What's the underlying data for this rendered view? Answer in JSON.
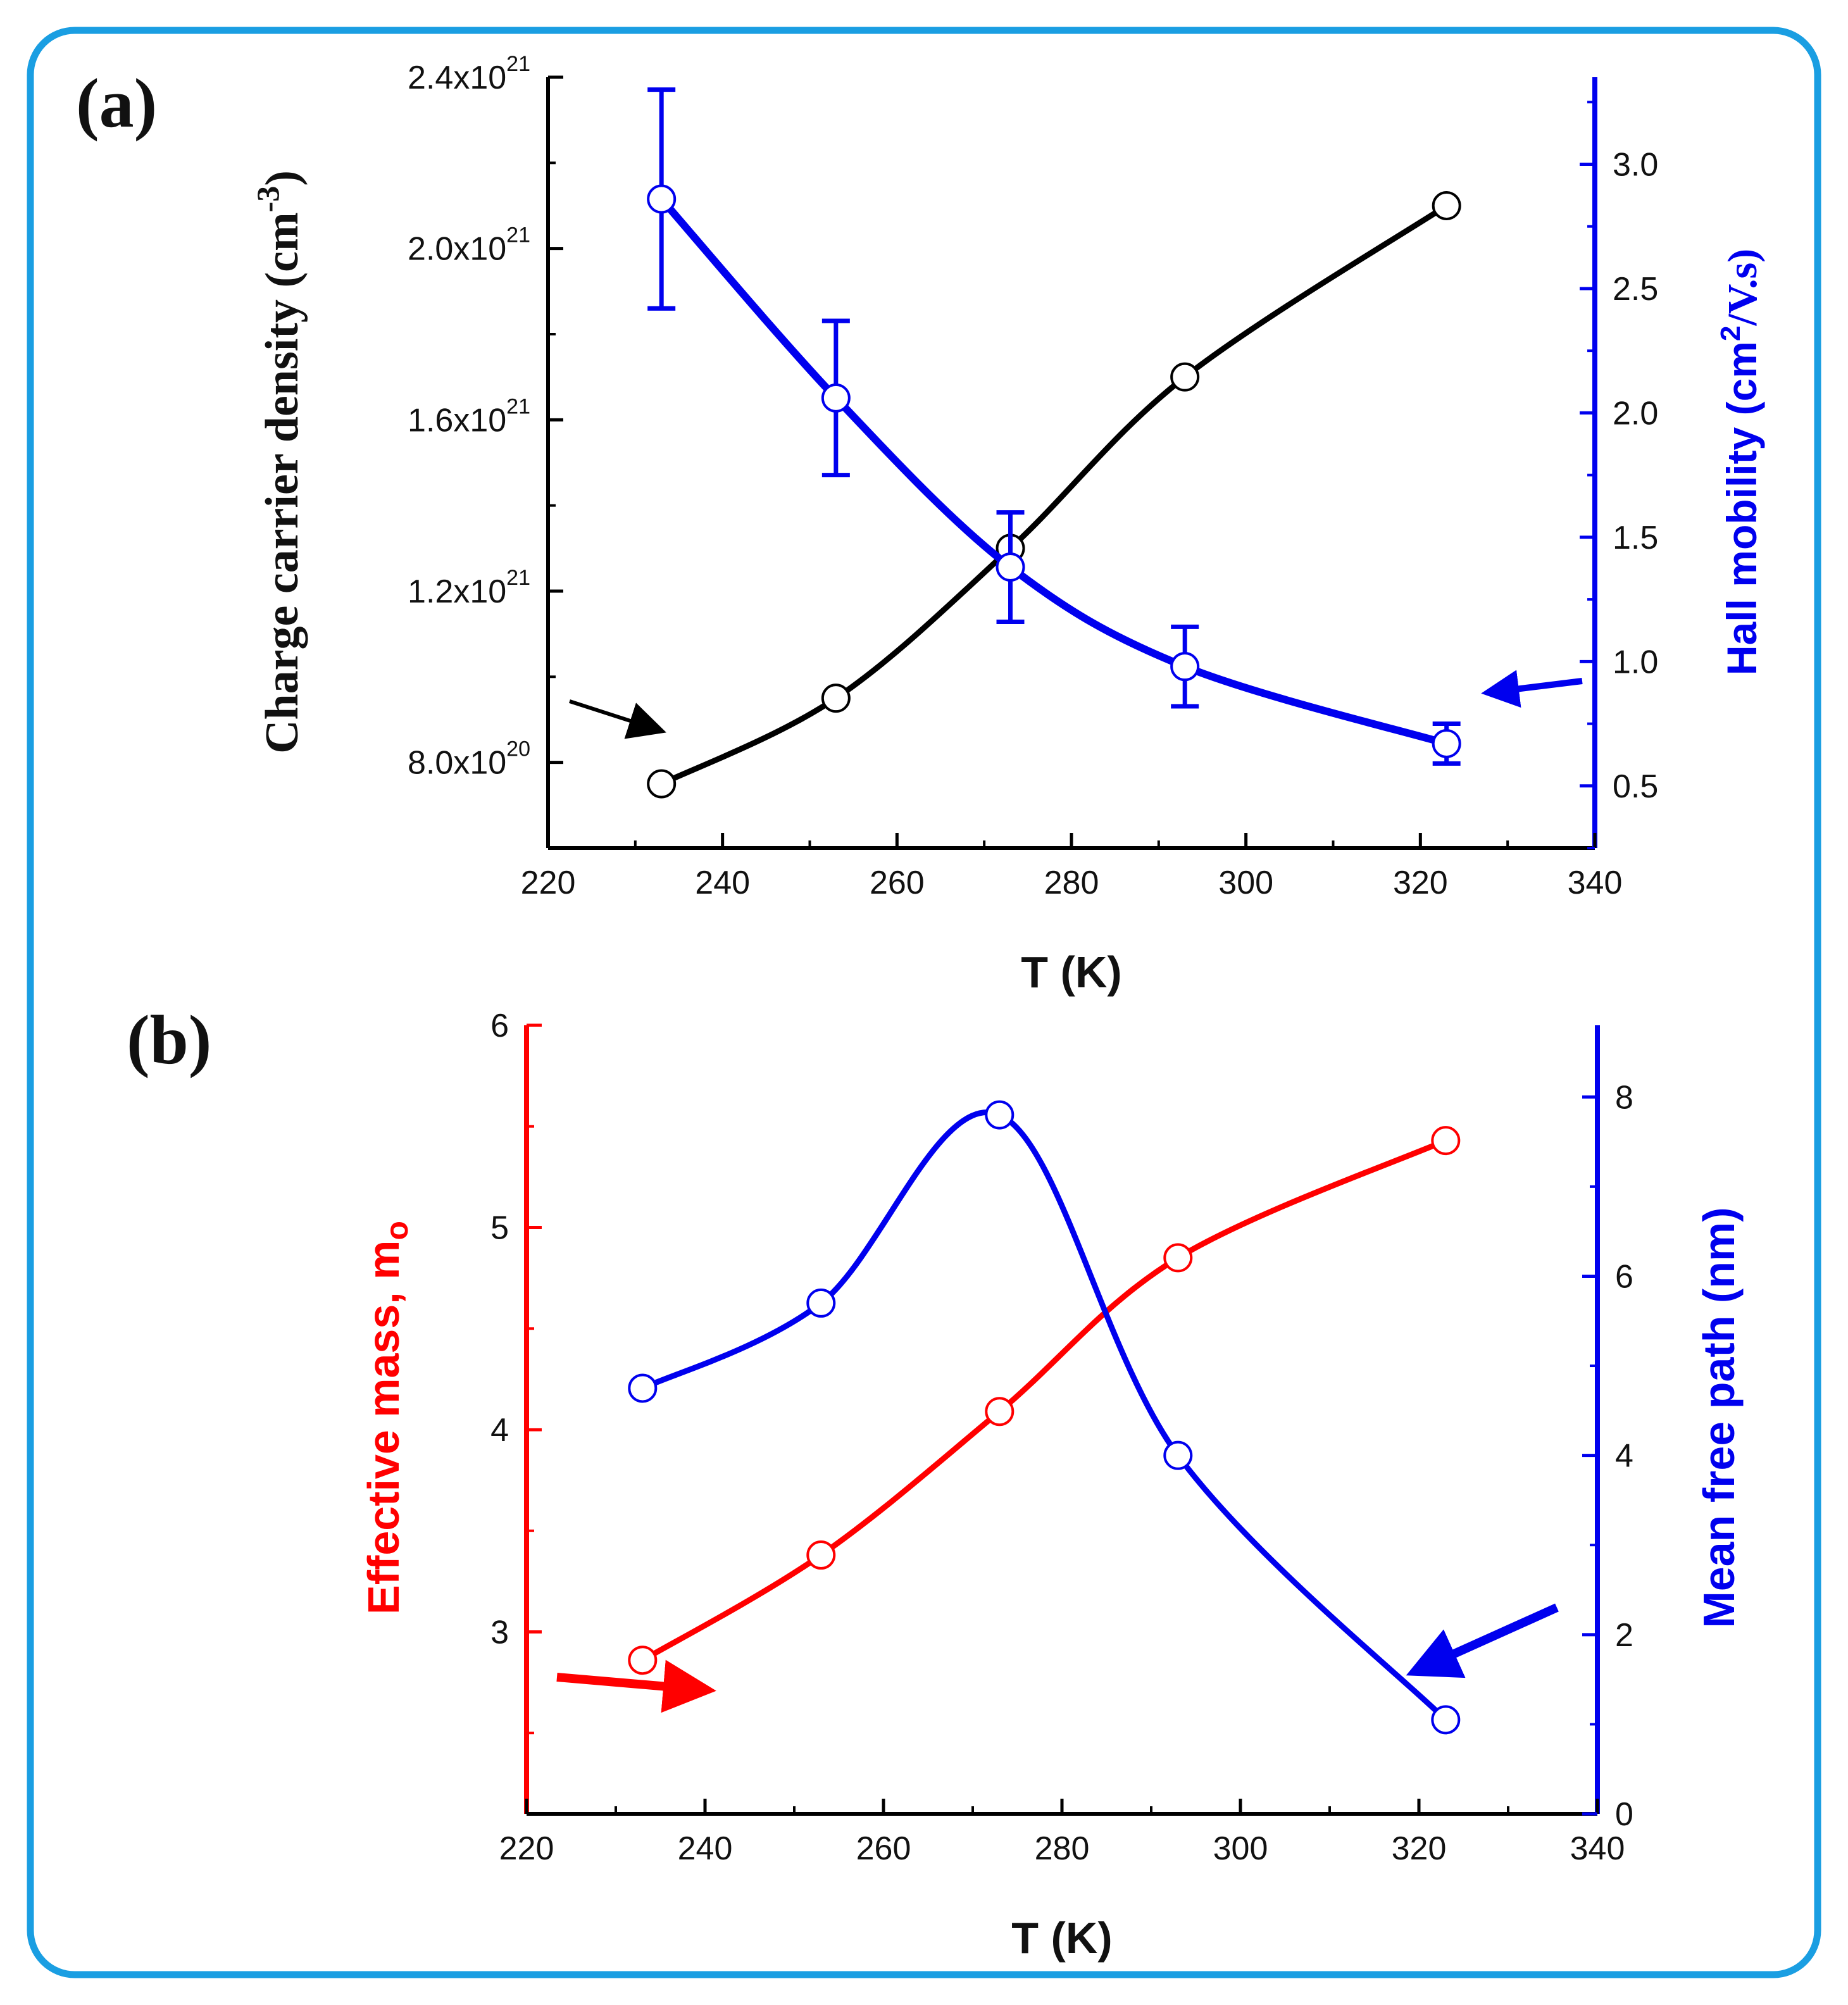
{
  "chart_data": [
    {
      "panel": "(a)",
      "type": "line",
      "xlabel": "T (K)",
      "xlim": [
        220,
        340
      ],
      "xticks": [
        "220",
        "240",
        "260",
        "280",
        "300",
        "320",
        "340"
      ],
      "ylabel_left": {
        "main": "Charge carrier density (cm",
        "sup": "-3",
        "close": ")"
      },
      "ylabel_right": {
        "main": "Hall mobility (cm",
        "sup": "2",
        "tail": "/V.s)"
      },
      "ylim_left": [
        6e+20,
        2.4e+21
      ],
      "ylim_right": [
        0.25,
        3.35
      ],
      "yticks_left": [
        {
          "value": 8e+20,
          "base": "8.0x10",
          "exp": "20"
        },
        {
          "value": 1.2e+21,
          "base": "1.2x10",
          "exp": "21"
        },
        {
          "value": 1.6e+21,
          "base": "1.6x10",
          "exp": "21"
        },
        {
          "value": 2e+21,
          "base": "2.0x10",
          "exp": "21"
        },
        {
          "value": 2.4e+21,
          "base": "2.4x10",
          "exp": "21"
        }
      ],
      "yticks_right": [
        "0.5",
        "1.0",
        "1.5",
        "2.0",
        "2.5",
        "3.0"
      ],
      "series": [
        {
          "name": "Charge carrier density",
          "axis": "left",
          "color": "#000000",
          "x": [
            233,
            253,
            273,
            293,
            323
          ],
          "y": [
            7.5e+20,
            9.5e+20,
            1.3e+21,
            1.7e+21,
            2.1e+21
          ]
        },
        {
          "name": "Hall mobility",
          "axis": "right",
          "color": "#0000ee",
          "x": [
            233,
            253,
            273,
            293,
            323
          ],
          "y": [
            2.86,
            2.06,
            1.38,
            0.98,
            0.67
          ],
          "err": [
            0.44,
            0.31,
            0.22,
            0.16,
            0.08
          ]
        }
      ]
    },
    {
      "panel": "(b)",
      "type": "line",
      "xlabel": "T (K)",
      "xlim": [
        220,
        340
      ],
      "xticks": [
        "220",
        "240",
        "260",
        "280",
        "300",
        "320",
        "340"
      ],
      "ylabel_left": {
        "main": "Effective mass, m",
        "sub": "o"
      },
      "ylabel_right": "Mean free path (nm)",
      "ylim_left": [
        2.1,
        6.0
      ],
      "ylim_right": [
        0,
        8.8
      ],
      "yticks_left": [
        "3",
        "4",
        "5",
        "6"
      ],
      "yticks_right": [
        "0",
        "2",
        "4",
        "6",
        "8"
      ],
      "series": [
        {
          "name": "Effective mass",
          "axis": "left",
          "color": "#ff0000",
          "x": [
            233,
            253,
            273,
            293,
            323
          ],
          "y": [
            2.86,
            3.38,
            4.09,
            4.85,
            5.43
          ]
        },
        {
          "name": "Mean free path",
          "axis": "right",
          "color": "#0000ee",
          "x": [
            233,
            253,
            273,
            293,
            323
          ],
          "y": [
            4.75,
            5.7,
            7.8,
            4.0,
            1.05
          ]
        }
      ]
    }
  ],
  "colors": {
    "frame": "#1a9ee2",
    "black": "#000000",
    "blue": "#0000ee",
    "red": "#ff0000"
  }
}
